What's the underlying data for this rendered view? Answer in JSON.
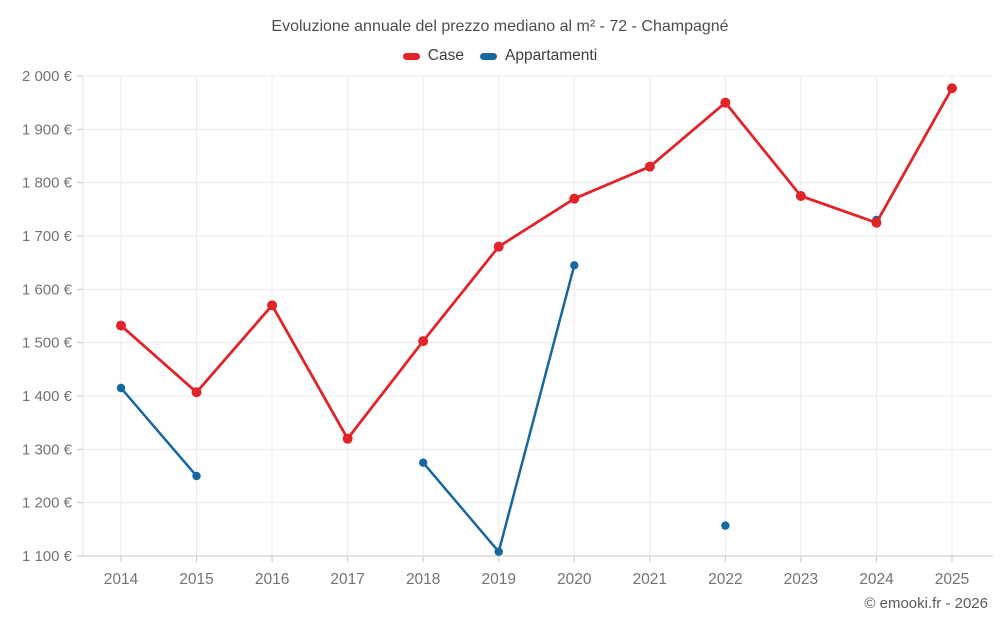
{
  "title": "Evoluzione annuale del prezzo mediano al m² - 72 - Champagné",
  "copyright": "© emooki.fr - 2026",
  "legend": [
    {
      "label": "Case",
      "color": "#e0242a"
    },
    {
      "label": "Appartamenti",
      "color": "#16689f"
    }
  ],
  "chart_data": {
    "type": "line",
    "title": "Evoluzione annuale del prezzo mediano al m² - 72 - Champagné",
    "categories": [
      2014,
      2015,
      2016,
      2017,
      2018,
      2019,
      2020,
      2021,
      2022,
      2023,
      2024,
      2025
    ],
    "series": [
      {
        "name": "Case",
        "color": "#e0242a",
        "values": [
          1532,
          1407,
          1570,
          1320,
          1503,
          1680,
          1770,
          1830,
          1950,
          1775,
          1725,
          1977
        ]
      },
      {
        "name": "Appartamenti",
        "color": "#16689f",
        "values": [
          1415,
          1250,
          null,
          null,
          1275,
          1108,
          1645,
          null,
          1157,
          null,
          1730,
          null
        ]
      }
    ],
    "ylim": [
      1100,
      2000
    ],
    "ytick_step": 100,
    "y_unit": "€",
    "grid": true,
    "legend_position": "top",
    "xlabel": "",
    "ylabel": ""
  },
  "colors": {
    "grid": "#ebebeb",
    "axis": "#c8c8c8",
    "plot_border": "#e3e3e3",
    "tick_label": "#737373"
  }
}
